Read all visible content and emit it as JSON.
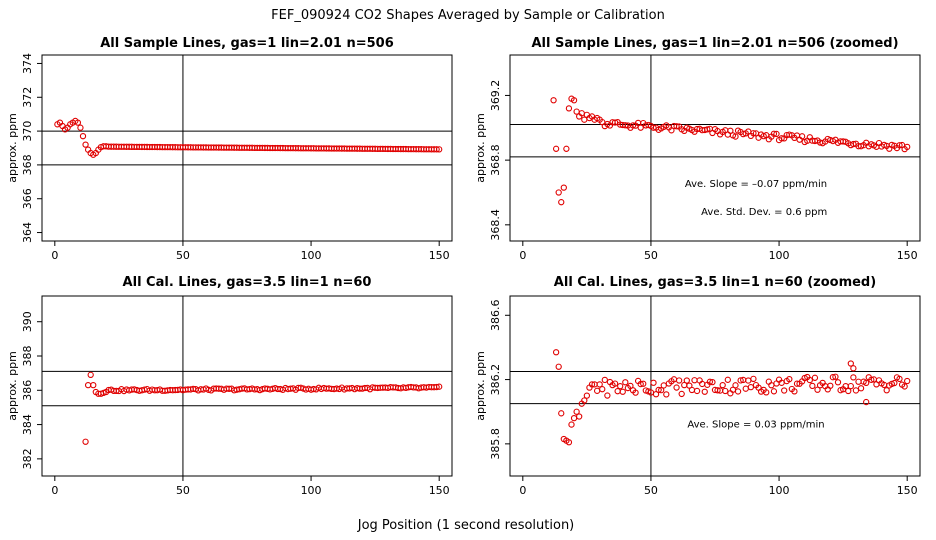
{
  "figure": {
    "title": "FEF_090924  CO2 Shapes Averaged by Sample or Calibration",
    "xlabel": "Jog Position (1 second resolution)"
  },
  "chart_data": [
    {
      "type": "scatter",
      "title": "All Sample Lines, gas=1 lin=2.01 n=506",
      "ylabel": "approx. ppm",
      "xlim": [
        -5,
        155
      ],
      "ylim": [
        363.5,
        374.5
      ],
      "xticks": [
        0,
        50,
        100,
        150
      ],
      "yticks": [
        364,
        366,
        368,
        370,
        372,
        374
      ],
      "hlines": [
        370,
        368
      ],
      "vlines": [
        50
      ],
      "annotations": [],
      "series_color": "#e00000",
      "x": [
        1,
        2,
        3,
        4,
        5,
        6,
        7,
        8,
        9,
        10,
        11,
        12,
        13,
        14,
        15,
        16,
        17,
        18,
        19,
        20,
        "21-150"
      ],
      "y_points": [
        [
          1,
          370.4
        ],
        [
          2,
          370.5
        ],
        [
          3,
          370.3
        ],
        [
          4,
          370.1
        ],
        [
          5,
          370.2
        ],
        [
          6,
          370.4
        ],
        [
          7,
          370.5
        ],
        [
          8,
          370.6
        ],
        [
          9,
          370.5
        ],
        [
          10,
          370.2
        ],
        [
          11,
          369.7
        ],
        [
          12,
          369.2
        ],
        [
          13,
          368.9
        ],
        [
          14,
          368.7
        ],
        [
          15,
          368.6
        ],
        [
          16,
          368.7
        ],
        [
          17,
          368.9
        ],
        [
          18,
          369.05
        ],
        [
          19,
          369.1
        ],
        [
          20,
          369.1
        ]
      ],
      "steady": {
        "from": 21,
        "to": 150,
        "start": 369.08,
        "end": 368.92
      }
    },
    {
      "type": "scatter",
      "title": "All Sample Lines, gas=1 lin=2.01 n=506 (zoomed)",
      "ylabel": "approx. ppm",
      "xlim": [
        -5,
        155
      ],
      "ylim": [
        368.3,
        369.45
      ],
      "xticks": [
        0,
        50,
        100,
        150
      ],
      "yticks": [
        368.4,
        368.8,
        369.2
      ],
      "hlines": [
        369.02,
        368.82
      ],
      "vlines": [
        50
      ],
      "annotations": [
        "Ave. Slope =  –0.07  ppm/min",
        "Ave. Std. Dev. =  0.6  ppm"
      ],
      "series_color": "#e00000",
      "y_points": [
        [
          12,
          369.17
        ],
        [
          13,
          368.87
        ],
        [
          14,
          368.6
        ],
        [
          15,
          368.54
        ],
        [
          16,
          368.63
        ],
        [
          17,
          368.87
        ],
        [
          18,
          369.12
        ],
        [
          19,
          369.18
        ],
        [
          20,
          369.17
        ],
        [
          21,
          369.1
        ],
        [
          22,
          369.07
        ],
        [
          23,
          369.09
        ],
        [
          24,
          369.05
        ],
        [
          25,
          369.08
        ],
        [
          26,
          369.06
        ],
        [
          27,
          369.07
        ],
        [
          28,
          369.05
        ],
        [
          29,
          369.06
        ],
        [
          30,
          369.05
        ]
      ],
      "steady": {
        "from": 31,
        "to": 150,
        "start": 369.03,
        "end": 368.88,
        "jitter": 0.02
      }
    },
    {
      "type": "scatter",
      "title": "All Cal. Lines, gas=3.5 lin=1 n=60",
      "ylabel": "approx. ppm",
      "xlim": [
        -5,
        155
      ],
      "ylim": [
        381,
        391.5
      ],
      "xticks": [
        0,
        50,
        100,
        150
      ],
      "yticks": [
        382,
        384,
        386,
        388,
        390
      ],
      "hlines": [
        387.1,
        385.1
      ],
      "vlines": [
        50
      ],
      "annotations": [],
      "series_color": "#e00000",
      "y_points": [
        [
          12,
          383.0
        ],
        [
          13,
          386.3
        ],
        [
          14,
          386.9
        ],
        [
          15,
          386.3
        ],
        [
          16,
          385.9
        ],
        [
          17,
          385.8
        ],
        [
          18,
          385.8
        ],
        [
          19,
          385.85
        ],
        [
          20,
          385.9
        ]
      ],
      "steady": {
        "from": 21,
        "to": 150,
        "start": 386.0,
        "end": 386.15,
        "jitter": 0.06
      }
    },
    {
      "type": "scatter",
      "title": "All Cal. Lines, gas=3.5 lin=1 n=60 (zoomed)",
      "ylabel": "approx. ppm",
      "xlim": [
        -5,
        155
      ],
      "ylim": [
        385.6,
        386.72
      ],
      "xticks": [
        0,
        50,
        100,
        150
      ],
      "yticks": [
        385.8,
        386.2,
        386.6
      ],
      "hlines": [
        386.25,
        386.05
      ],
      "vlines": [
        50
      ],
      "annotations": [
        "Ave. Slope =  0.03  ppm/min"
      ],
      "series_color": "#e00000",
      "y_points": [
        [
          13,
          386.37
        ],
        [
          14,
          386.28
        ],
        [
          15,
          385.99
        ],
        [
          16,
          385.83
        ],
        [
          17,
          385.82
        ],
        [
          18,
          385.81
        ],
        [
          19,
          385.92
        ],
        [
          20,
          385.96
        ],
        [
          21,
          386.0
        ],
        [
          22,
          385.97
        ],
        [
          23,
          386.05
        ],
        [
          24,
          386.07
        ],
        [
          25,
          386.1
        ],
        [
          26,
          386.15
        ],
        [
          27,
          386.17
        ],
        [
          28,
          386.17
        ],
        [
          29,
          386.13
        ],
        [
          30,
          386.17
        ]
      ],
      "steady": {
        "from": 31,
        "to": 150,
        "start": 386.15,
        "end": 386.18,
        "jitter": 0.05
      },
      "extra_points": [
        [
          128,
          386.3
        ],
        [
          129,
          386.27
        ],
        [
          134,
          386.06
        ]
      ]
    }
  ]
}
